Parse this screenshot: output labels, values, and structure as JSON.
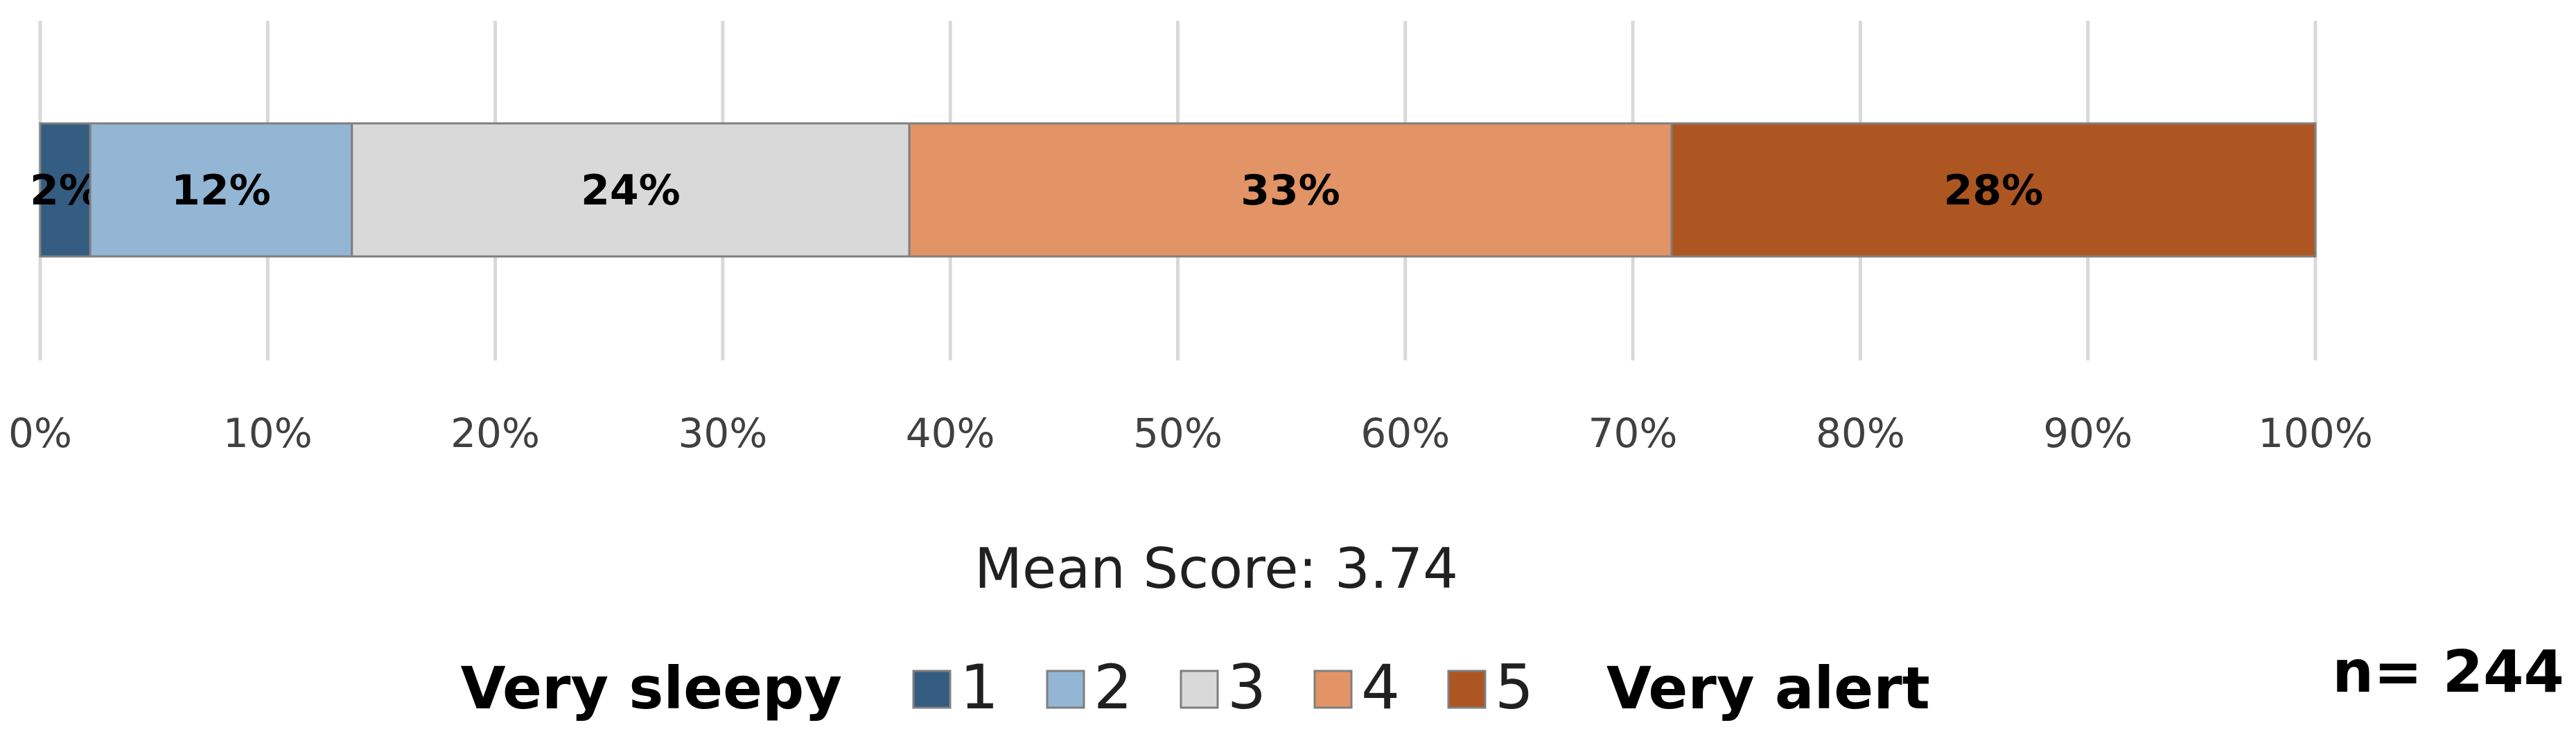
{
  "chart_data": {
    "type": "bar",
    "orientation": "horizontal",
    "stacked": true,
    "x_ticks": [
      "0%",
      "10%",
      "20%",
      "30%",
      "40%",
      "50%",
      "60%",
      "70%",
      "80%",
      "90%",
      "100%"
    ],
    "xlim": [
      0,
      100
    ],
    "grid": "vertical",
    "series": [
      {
        "name": "1",
        "value": 2.2,
        "label": "2%",
        "color": "#355C81"
      },
      {
        "name": "2",
        "value": 11.5,
        "label": "12%",
        "color": "#94B6D5"
      },
      {
        "name": "3",
        "value": 24.5,
        "label": "24%",
        "color": "#D9D9D9"
      },
      {
        "name": "4",
        "value": 33.5,
        "label": "33%",
        "color": "#E29466"
      },
      {
        "name": "5",
        "value": 28.3,
        "label": "28%",
        "color": "#AD5622"
      }
    ],
    "mean_text": "Mean Score: 3.74",
    "legend": {
      "left_anchor": "Very sleepy",
      "right_anchor": "Very alert",
      "placement": "bottom"
    },
    "n_text": "n= 244"
  }
}
